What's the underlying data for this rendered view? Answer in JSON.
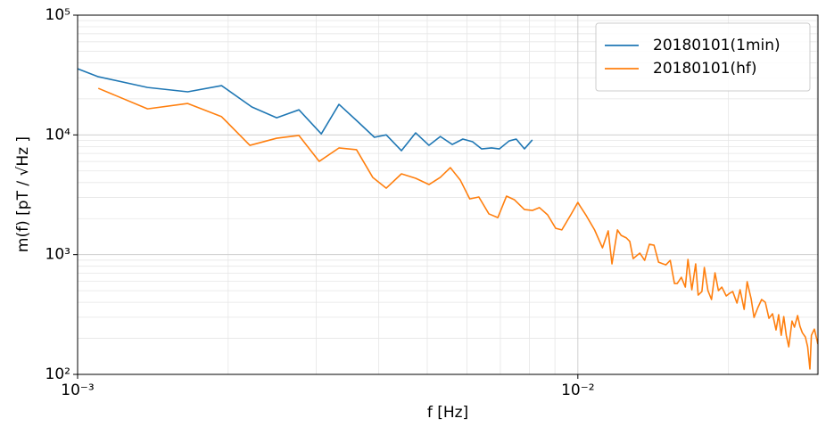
{
  "chart_data": {
    "type": "line",
    "xlabel": "f [Hz]",
    "ylabel": "m(f) [pT / √Hz ]",
    "xscale": "log",
    "yscale": "log",
    "xlim": [
      0.001,
      0.0302
    ],
    "ylim": [
      100,
      100000
    ],
    "xticks": [
      {
        "value": 0.001,
        "label": "10⁻³"
      },
      {
        "value": 0.01,
        "label": "10⁻²"
      }
    ],
    "yticks": [
      {
        "value": 100,
        "label": "10²"
      },
      {
        "value": 1000,
        "label": "10³"
      },
      {
        "value": 10000,
        "label": "10⁴"
      },
      {
        "value": 100000,
        "label": "10⁵"
      }
    ],
    "xminorticks": [
      0.002,
      0.003,
      0.004,
      0.005,
      0.006,
      0.007,
      0.008,
      0.009,
      0.02,
      0.03
    ],
    "yminorticks": [
      200,
      300,
      400,
      500,
      600,
      700,
      800,
      900,
      2000,
      3000,
      4000,
      5000,
      6000,
      7000,
      8000,
      9000,
      20000,
      30000,
      40000,
      50000,
      60000,
      70000,
      80000,
      90000
    ],
    "grid": true,
    "legend": "upper right",
    "series": [
      {
        "name": "20180101(1min)",
        "color": "#1f77b4",
        "x": [
          0.001,
          0.0011,
          0.00138,
          0.00166,
          0.00194,
          0.00223,
          0.0025,
          0.00277,
          0.00307,
          0.00333,
          0.00361,
          0.00392,
          0.00414,
          0.00444,
          0.00474,
          0.00504,
          0.00531,
          0.00561,
          0.00589,
          0.00616,
          0.00642,
          0.00672,
          0.00697,
          0.00729,
          0.00753,
          0.00782,
          0.00811
        ],
        "values": [
          35700,
          30600,
          24900,
          22900,
          25800,
          17100,
          13900,
          16200,
          10200,
          18000,
          13200,
          9550,
          10000,
          7380,
          10400,
          8180,
          9700,
          8320,
          9230,
          8770,
          7640,
          7780,
          7640,
          8910,
          9230,
          7640,
          9080
        ]
      },
      {
        "name": "20180101(hf)",
        "color": "#ff7f0e",
        "x": [
          0.0011,
          0.00138,
          0.00166,
          0.00194,
          0.00221,
          0.0025,
          0.00277,
          0.00304,
          0.00333,
          0.00361,
          0.00389,
          0.00414,
          0.00444,
          0.00474,
          0.00504,
          0.00531,
          0.00556,
          0.00582,
          0.00608,
          0.00634,
          0.00664,
          0.00692,
          0.0072,
          0.00747,
          0.00782,
          0.00811,
          0.00838,
          0.0087,
          0.00903,
          0.00929,
          0.00968,
          0.01,
          0.0101,
          0.0104,
          0.0108,
          0.0112,
          0.0115,
          0.0117,
          0.012,
          0.0122,
          0.0125,
          0.0127,
          0.0129,
          0.0133,
          0.0136,
          0.0139,
          0.0142,
          0.0145,
          0.0148,
          0.015,
          0.0153,
          0.0156,
          0.0158,
          0.0161,
          0.0164,
          0.0166,
          0.0169,
          0.0172,
          0.0174,
          0.0177,
          0.0179,
          0.0182,
          0.0185,
          0.0188,
          0.0191,
          0.0194,
          0.0198,
          0.0201,
          0.0204,
          0.0208,
          0.0211,
          0.0215,
          0.0218,
          0.0222,
          0.0225,
          0.0229,
          0.0233,
          0.0237,
          0.0241,
          0.0245,
          0.0249,
          0.0252,
          0.0255,
          0.0258,
          0.0261,
          0.0264,
          0.0268,
          0.0271,
          0.0275,
          0.0278,
          0.0281,
          0.0285,
          0.0288,
          0.0291,
          0.0293,
          0.0297,
          0.0302
        ],
        "values": [
          24500,
          16500,
          18300,
          14200,
          8180,
          9380,
          9890,
          6010,
          7780,
          7520,
          4420,
          3590,
          4730,
          4340,
          3850,
          4420,
          5330,
          4200,
          2920,
          3030,
          2190,
          2040,
          3080,
          2870,
          2380,
          2340,
          2470,
          2150,
          1660,
          1610,
          2150,
          2730,
          2550,
          2110,
          1610,
          1140,
          1580,
          837,
          1610,
          1450,
          1380,
          1290,
          927,
          1030,
          896,
          1220,
          1200,
          865,
          837,
          822,
          896,
          574,
          574,
          647,
          536,
          912,
          509,
          837,
          459,
          492,
          781,
          500,
          422,
          705,
          500,
          536,
          452,
          475,
          492,
          394,
          509,
          349,
          594,
          429,
          299,
          361,
          422,
          400,
          294,
          321,
          235,
          315,
          212,
          304,
          212,
          170,
          279,
          248,
          310,
          252,
          223,
          205,
          170,
          111,
          212,
          239,
          179
        ]
      }
    ]
  }
}
